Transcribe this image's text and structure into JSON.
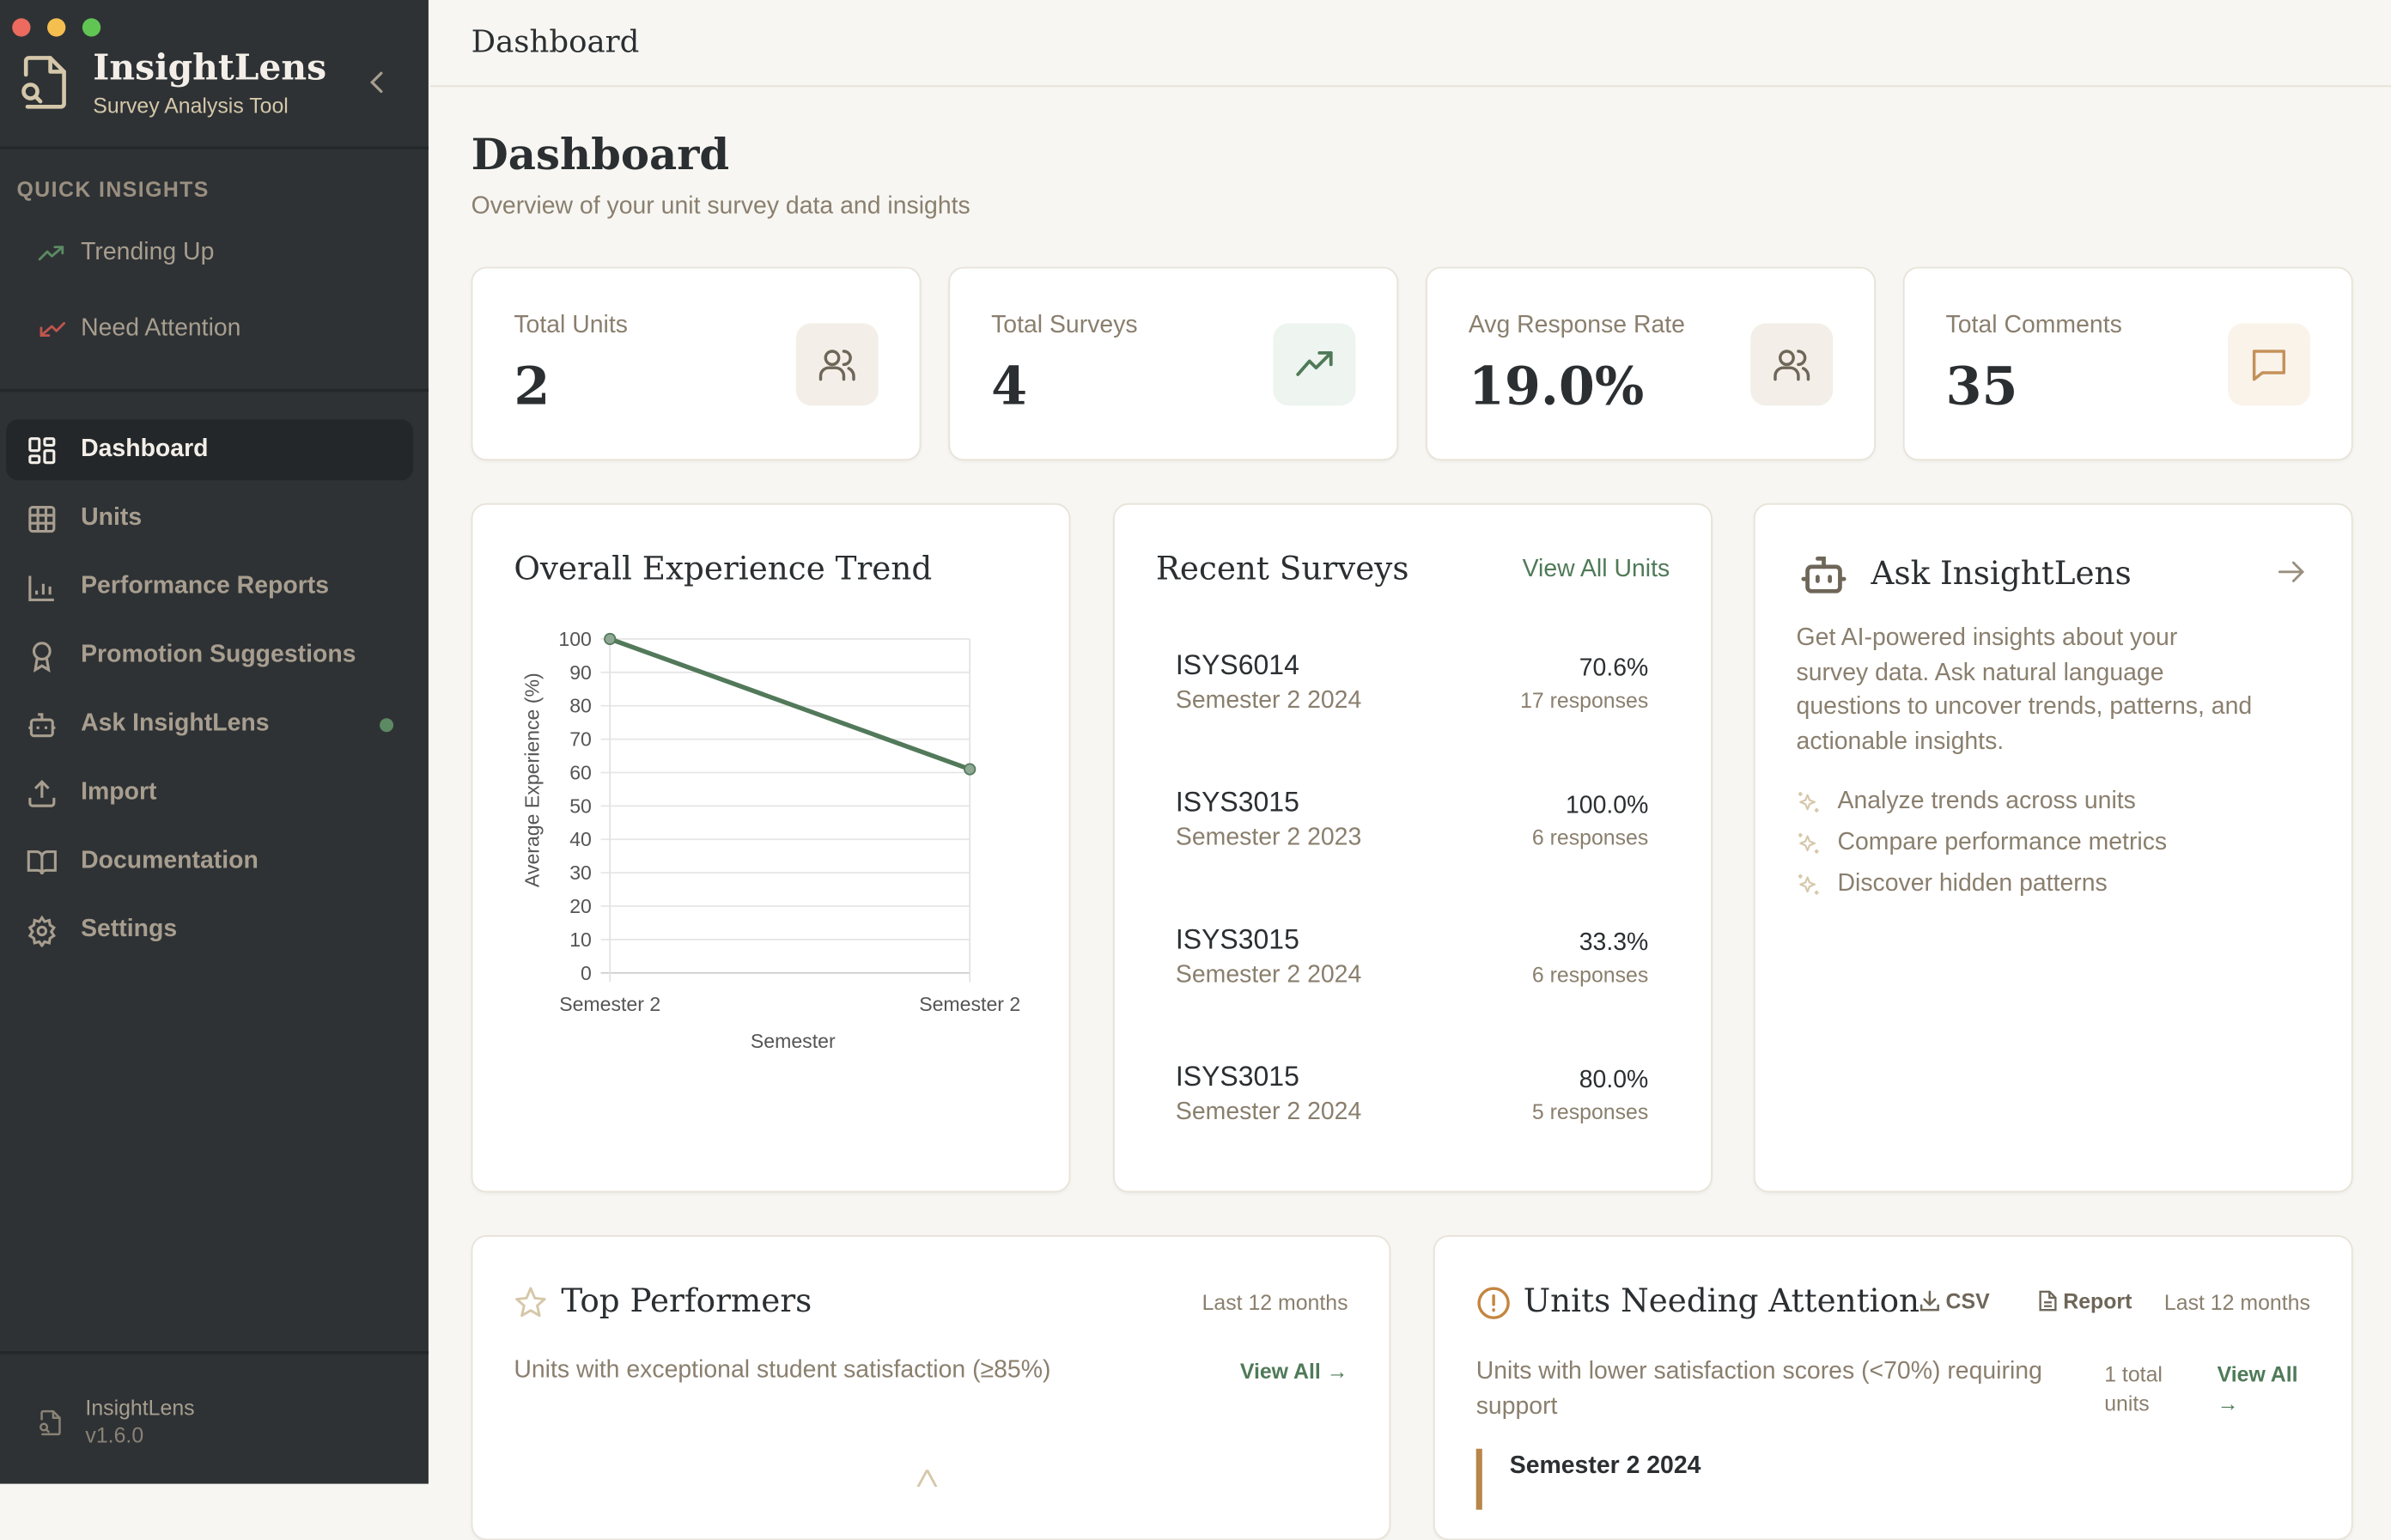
{
  "app": {
    "title": "InsightLens",
    "subtitle": "Survey Analysis Tool",
    "version_name": "InsightLens",
    "version": "v1.6.0"
  },
  "sidebar": {
    "quick_insights_label": "QUICK INSIGHTS",
    "quick_insights": [
      {
        "label": "Trending Up",
        "icon": "trending-up-icon",
        "color": "#5c8a63"
      },
      {
        "label": "Need Attention",
        "icon": "trending-down-icon",
        "color": "#c0554d"
      }
    ],
    "items": [
      {
        "label": "Dashboard",
        "icon": "dashboard-icon",
        "active": true
      },
      {
        "label": "Units",
        "icon": "table-icon"
      },
      {
        "label": "Performance Reports",
        "icon": "bar-chart-icon"
      },
      {
        "label": "Promotion Suggestions",
        "icon": "award-icon"
      },
      {
        "label": "Ask InsightLens",
        "icon": "bot-icon",
        "status_dot": "#5c8a63"
      },
      {
        "label": "Import",
        "icon": "upload-icon"
      },
      {
        "label": "Documentation",
        "icon": "book-icon"
      },
      {
        "label": "Settings",
        "icon": "gear-icon"
      }
    ]
  },
  "header": {
    "title": "Dashboard"
  },
  "page": {
    "title": "Dashboard",
    "subtitle": "Overview of your unit survey data and insights"
  },
  "stats": [
    {
      "label": "Total Units",
      "value": "2",
      "icon": "users-icon"
    },
    {
      "label": "Total Surveys",
      "value": "4",
      "icon": "trending-up-icon"
    },
    {
      "label": "Avg Response Rate",
      "value": "19.0%",
      "icon": "users-icon"
    },
    {
      "label": "Total Comments",
      "value": "35",
      "icon": "message-icon"
    }
  ],
  "trend": {
    "title": "Overall Experience Trend"
  },
  "chart_data": {
    "type": "line",
    "categories": [
      "Semester 2",
      "Semester 2"
    ],
    "values": [
      100,
      61
    ],
    "xlabel": "Semester",
    "ylabel": "Average Experience (%)",
    "ylim": [
      0,
      100
    ],
    "yticks": [
      0,
      10,
      20,
      30,
      40,
      50,
      60,
      70,
      80,
      90,
      100
    ],
    "grid": true,
    "color": "#52795a"
  },
  "recent": {
    "title": "Recent Surveys",
    "link": "View All Units",
    "items": [
      {
        "code": "ISYS6014",
        "semester": "Semester 2 2024",
        "rate": "70.6%",
        "responses": "17 responses"
      },
      {
        "code": "ISYS3015",
        "semester": "Semester 2 2023",
        "rate": "100.0%",
        "responses": "6 responses"
      },
      {
        "code": "ISYS3015",
        "semester": "Semester 2 2024",
        "rate": "33.3%",
        "responses": "6 responses"
      },
      {
        "code": "ISYS3015",
        "semester": "Semester 2 2024",
        "rate": "80.0%",
        "responses": "5 responses"
      }
    ]
  },
  "ask": {
    "title": "Ask InsightLens",
    "description": "Get AI-powered insights about your survey data. Ask natural language questions to uncover trends, patterns, and actionable insights.",
    "bullets": [
      "Analyze trends across units",
      "Compare performance metrics",
      "Discover hidden patterns"
    ]
  },
  "top": {
    "title": "Top Performers",
    "period": "Last 12 months",
    "subtitle": "Units with exceptional student satisfaction (≥85%)",
    "link": "View All →"
  },
  "attention": {
    "title": "Units Needing Attention",
    "csv": "CSV",
    "report": "Report",
    "period": "Last 12 months",
    "subtitle": "Units with lower satisfaction scores (<70%) requiring support",
    "count": "1 total units",
    "link": "View All →",
    "first_group": "Semester 2 2024"
  }
}
